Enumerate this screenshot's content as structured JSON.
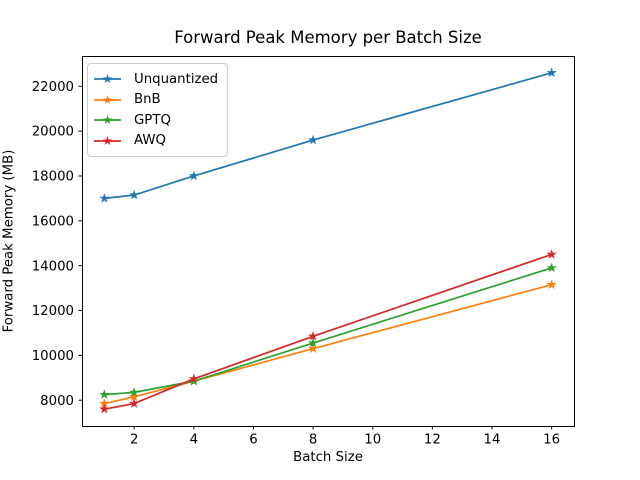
{
  "figure": {
    "background": "#ffffff",
    "spine_color": "#000000",
    "legend_border_color": "#cccccc"
  },
  "chart_data": {
    "type": "line",
    "title": "Forward Peak Memory per Batch Size",
    "xlabel": "Batch Size",
    "ylabel": "Forward Peak Memory (MB)",
    "x": [
      1,
      2,
      4,
      8,
      16
    ],
    "series": [
      {
        "name": "Unquantized",
        "color": "#1f77b4",
        "marker": "star",
        "values": [
          17000,
          17150,
          18000,
          19600,
          22600
        ]
      },
      {
        "name": "BnB",
        "color": "#ff7f0e",
        "marker": "star",
        "values": [
          7850,
          8150,
          8850,
          10300,
          13150
        ]
      },
      {
        "name": "GPTQ",
        "color": "#2ca02c",
        "marker": "star",
        "values": [
          8250,
          8350,
          8850,
          10550,
          13900
        ]
      },
      {
        "name": "AWQ",
        "color": "#d62728",
        "marker": "star",
        "values": [
          7600,
          7850,
          8950,
          10850,
          14500
        ]
      }
    ],
    "xlim": [
      0.25,
      16.75
    ],
    "ylim": [
      6850,
      23350
    ],
    "xticks": [
      2,
      4,
      6,
      8,
      10,
      12,
      14,
      16
    ],
    "yticks": [
      8000,
      10000,
      12000,
      14000,
      16000,
      18000,
      20000,
      22000
    ],
    "grid": false,
    "legend_position": "upper left"
  }
}
